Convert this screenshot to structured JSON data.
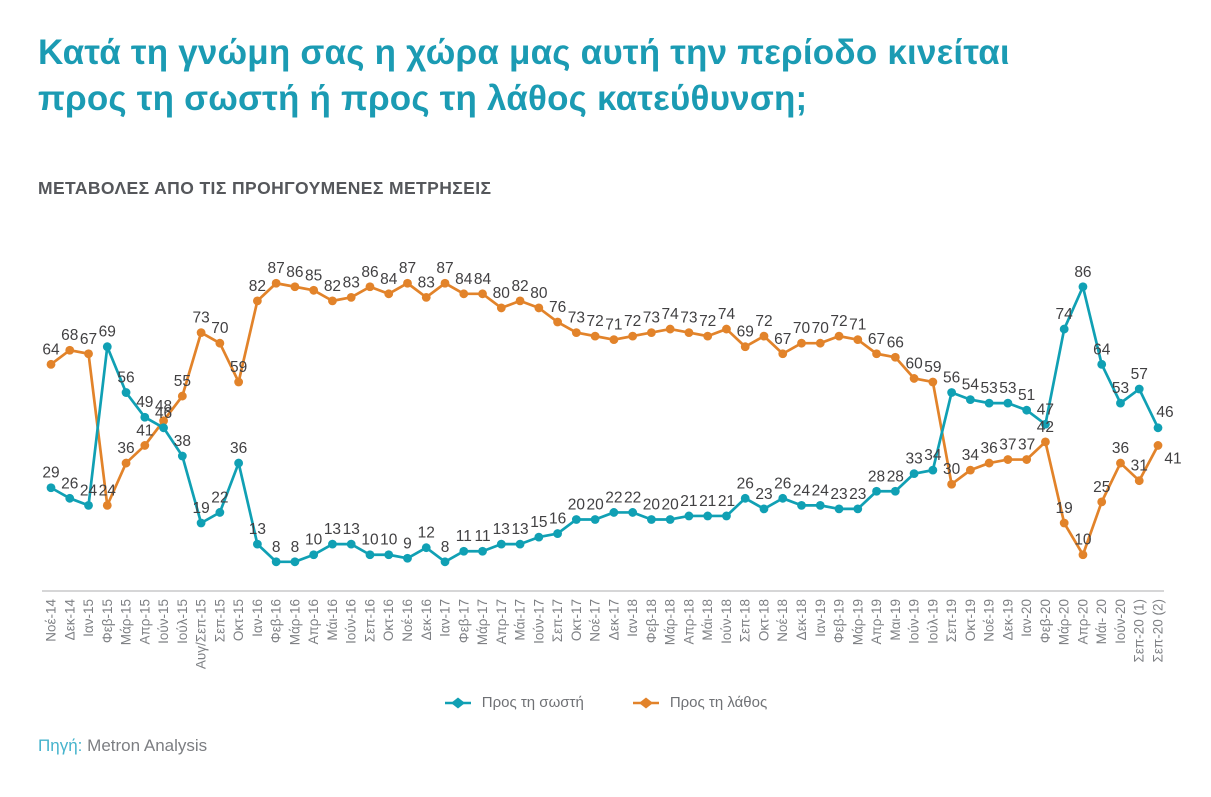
{
  "page": {
    "title": "Κατά τη γνώμη σας η χώρα μας αυτή την περίοδο κινείται\nπρος τη σωστή ή προς τη λάθος κατεύθυνση;",
    "subtitle": "ΜΕΤΑΒΟΛΕΣ ΑΠΟ ΤΙΣ ΠΡΟΗΓΟΥΜΕΝΕΣ ΜΕΤΡΗΣΕΙΣ",
    "source_label": "Πηγή:",
    "source_text": "Metron Analysis"
  },
  "colors": {
    "title_teal": "#1b9bb3",
    "subtitle_gray": "#55575b",
    "series_right": "#10a0b4",
    "series_wrong": "#e2832a",
    "value_label": "#414042",
    "axis_label": "#7e8084",
    "axis_line": "#c9c9ca"
  },
  "chart_data": {
    "type": "line",
    "title": "ΜΕΤΑΒΟΛΕΣ ΑΠΟ ΤΙΣ ΠΡΟΗΓΟΥΜΕΝΕΣ ΜΕΤΡΗΣΕΙΣ",
    "xlabel": "",
    "ylabel": "",
    "ylim": [
      0,
      100
    ],
    "grid": false,
    "legend_position": "bottom",
    "value_labels": true,
    "categories": [
      "Νοέ-14",
      "Δεκ-14",
      "Ιαν-15",
      "Φεβ-15",
      "Μάρ-15",
      "Απρ-15",
      "Ιούν-15",
      "Ιούλ-15",
      "Αυγ/Σεπ-15",
      "Σεπ-15",
      "Οκτ-15",
      "Ιαν-16",
      "Φεβ-16",
      "Μάρ-16",
      "Απρ-16",
      "Μάι-16",
      "Ιούν-16",
      "Σεπ-16",
      "Οκτ-16",
      "Νοέ-16",
      "Δεκ-16",
      "Ιαν-17",
      "Φεβ-17",
      "Μάρ-17",
      "Απρ-17",
      "Μάι-17",
      "Ιούν-17",
      "Σεπ-17",
      "Οκτ-17",
      "Νοέ-17",
      "Δεκ-17",
      "Ιαν-18",
      "Φεβ-18",
      "Μάρ-18",
      "Απρ-18",
      "Μάι-18",
      "Ιούν-18",
      "Σεπ-18",
      "Οκτ-18",
      "Νοέ-18",
      "Δεκ-18",
      "Ιαν-19",
      "Φεβ-19",
      "Μάρ-19",
      "Απρ-19",
      "Μαι-19",
      "Ιούν-19",
      "Ιούλ-19",
      "Σεπ-19",
      "Οκτ-19",
      "Νοέ-19",
      "Δεκ-19",
      "Ιαν-20",
      "Φεβ-20",
      "Μάρ-20",
      "Απρ-20",
      "Μάι- 20",
      "Ιούν-20",
      "Σεπ-20 (1)",
      "Σεπ-20 (2)"
    ],
    "series": [
      {
        "name": "Προς τη σωστή",
        "color": "#10a0b4",
        "values": [
          29,
          26,
          24,
          69,
          56,
          49,
          46,
          38,
          19,
          22,
          36,
          13,
          8,
          8,
          10,
          13,
          13,
          10,
          10,
          9,
          12,
          8,
          11,
          11,
          13,
          13,
          15,
          16,
          20,
          20,
          22,
          22,
          20,
          20,
          21,
          21,
          21,
          26,
          23,
          26,
          24,
          24,
          23,
          23,
          28,
          28,
          33,
          34,
          56,
          54,
          53,
          53,
          51,
          47,
          74,
          86,
          64,
          53,
          57,
          46
        ]
      },
      {
        "name": "Προς τη λάθος",
        "color": "#e2832a",
        "values": [
          64,
          68,
          67,
          24,
          36,
          41,
          48,
          55,
          73,
          70,
          59,
          82,
          87,
          86,
          85,
          82,
          83,
          86,
          84,
          87,
          83,
          87,
          84,
          84,
          80,
          82,
          80,
          76,
          73,
          72,
          71,
          72,
          73,
          74,
          73,
          72,
          74,
          69,
          72,
          67,
          70,
          70,
          72,
          71,
          67,
          66,
          60,
          59,
          30,
          34,
          36,
          37,
          37,
          42,
          19,
          10,
          25,
          36,
          31,
          41
        ]
      }
    ]
  }
}
